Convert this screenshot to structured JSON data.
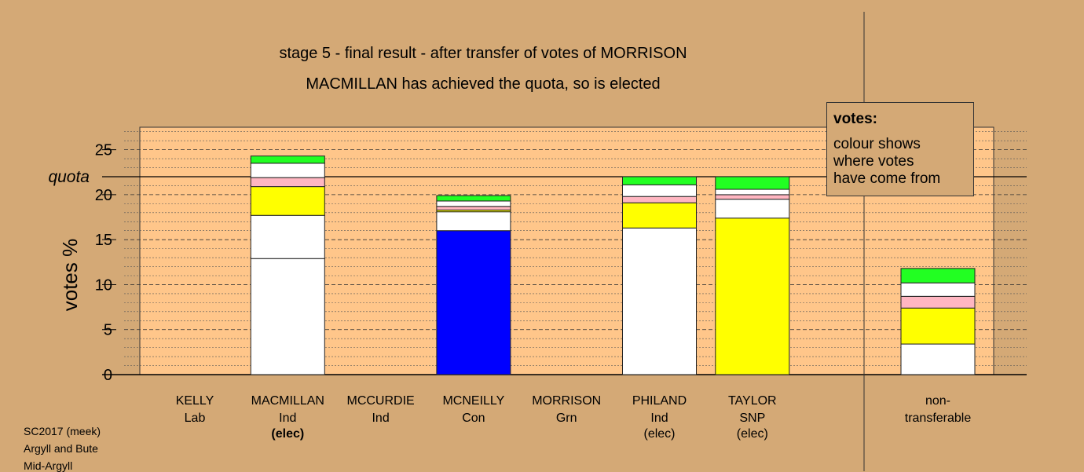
{
  "chart_data": {
    "type": "bar",
    "stacked": true,
    "title": "stage 5 - final result - after transfer of votes of MORRISON",
    "subtitle": "MACMILLAN has achieved the quota, so is elected",
    "ylabel": "votes %",
    "ylim": [
      0,
      27.5
    ],
    "yticks": [
      0,
      5,
      10,
      15,
      20,
      25
    ],
    "quota": 22.0,
    "quota_label": "quota",
    "grid": true,
    "legend_title": "votes:",
    "legend_text": "colour shows where votes have come from",
    "legend_lines": [
      "colour shows",
      "where votes",
      "have come from"
    ],
    "legend_position": "top-right",
    "categories": [
      {
        "name": "KELLY",
        "party": "Lab",
        "status": ""
      },
      {
        "name": "MACMILLAN",
        "party": "Ind",
        "status": "(elec)",
        "status_bold": true
      },
      {
        "name": "MCCURDIE",
        "party": "Ind",
        "status": ""
      },
      {
        "name": "MCNEILLY",
        "party": "Con",
        "status": ""
      },
      {
        "name": "MORRISON",
        "party": "Grn",
        "status": ""
      },
      {
        "name": "PHILAND",
        "party": "Ind",
        "status": "(elec)"
      },
      {
        "name": "TAYLOR",
        "party": "SNP",
        "status": "(elec)"
      }
    ],
    "nontransferable_label": [
      "non-",
      "transferable"
    ],
    "bars": [
      [],
      [
        {
          "color": "#ffffff",
          "value": 12.9
        },
        {
          "color": "#ffffff",
          "value": 4.8
        },
        {
          "color": "#ffff00",
          "value": 3.2
        },
        {
          "color": "#ffb6c1",
          "value": 1.0
        },
        {
          "color": "#ffffff",
          "value": 1.6
        },
        {
          "color": "#22ff22",
          "value": 0.8
        }
      ],
      [],
      [
        {
          "color": "#0000ff",
          "value": 16.0
        },
        {
          "color": "#ffffff",
          "value": 2.1
        },
        {
          "color": "#ffff00",
          "value": 0.2
        },
        {
          "color": "#ffb6c1",
          "value": 0.4
        },
        {
          "color": "#ffffff",
          "value": 0.6
        },
        {
          "color": "#22ff22",
          "value": 0.6
        }
      ],
      [],
      [
        {
          "color": "#ffffff",
          "value": 16.3
        },
        {
          "color": "#ffff00",
          "value": 2.8
        },
        {
          "color": "#ffb6c1",
          "value": 0.7
        },
        {
          "color": "#ffffff",
          "value": 1.3
        },
        {
          "color": "#22ff22",
          "value": 0.9
        }
      ],
      [
        {
          "color": "#ffff00",
          "value": 17.4
        },
        {
          "color": "#ffffff",
          "value": 2.1
        },
        {
          "color": "#ffb6c1",
          "value": 0.5
        },
        {
          "color": "#ffffff",
          "value": 0.6
        },
        {
          "color": "#22ff22",
          "value": 1.4
        }
      ]
    ],
    "nontransferable": [
      {
        "color": "#ffffff",
        "value": 3.4
      },
      {
        "color": "#ffff00",
        "value": 4.0
      },
      {
        "color": "#ffb6c1",
        "value": 1.3
      },
      {
        "color": "#ffffff",
        "value": 1.5
      },
      {
        "color": "#22ff22",
        "value": 1.6
      }
    ]
  },
  "footer": [
    "SC2017 (meek)",
    "Argyll and Bute",
    "Mid-Argyll"
  ]
}
